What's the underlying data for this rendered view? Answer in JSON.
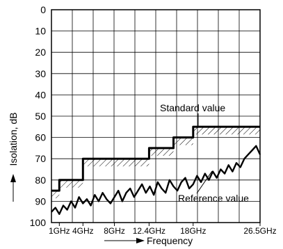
{
  "chart_data": {
    "type": "line",
    "xlabel": "Frequency",
    "ylabel": "Isolation, dB",
    "xlim": [
      0,
      26.5
    ],
    "ylim": [
      0,
      100
    ],
    "y_inverted": true,
    "grid": true,
    "x_ticks": [
      {
        "value": 1,
        "label": "1GHz"
      },
      {
        "value": 4,
        "label": "4GHz"
      },
      {
        "value": 8,
        "label": "8GHz"
      },
      {
        "value": 12.4,
        "label": "12.4GHz"
      },
      {
        "value": 18,
        "label": "18GHz"
      },
      {
        "value": 26.5,
        "label": "26.5GHz"
      }
    ],
    "y_ticks": [
      0,
      10,
      20,
      30,
      40,
      50,
      60,
      70,
      80,
      90,
      100
    ],
    "series": [
      {
        "name": "Standard value",
        "style": "step",
        "x": [
          0,
          1,
          1,
          4,
          4,
          12.4,
          12.4,
          15.5,
          15.5,
          18,
          18,
          26.5
        ],
        "y": [
          85,
          85,
          80,
          80,
          70,
          70,
          65,
          65,
          60,
          60,
          55,
          55
        ]
      },
      {
        "name": "Reference value",
        "style": "line",
        "x": [
          0,
          0.5,
          1,
          1.5,
          2,
          2.5,
          3,
          3.5,
          4,
          4.5,
          5,
          5.5,
          6,
          6.5,
          7,
          7.5,
          8,
          8.5,
          9,
          9.5,
          10,
          10.5,
          11,
          11.5,
          12,
          12.5,
          13,
          13.5,
          14,
          14.5,
          15,
          15.5,
          16,
          16.5,
          17,
          17.5,
          18,
          18.5,
          19,
          19.5,
          20,
          20.5,
          21,
          21.5,
          22,
          22.5,
          23,
          23.5,
          24,
          24.5,
          25,
          25.5,
          26,
          26.5
        ],
        "y": [
          95,
          93,
          96,
          92,
          94,
          90,
          93,
          88,
          91,
          89,
          92,
          87,
          90,
          86,
          89,
          91,
          88,
          85,
          90,
          86,
          84,
          88,
          85,
          82,
          86,
          83,
          87,
          81,
          84,
          86,
          80,
          83,
          85,
          81,
          79,
          84,
          82,
          78,
          81,
          77,
          80,
          76,
          79,
          75,
          77,
          73,
          76,
          72,
          74,
          70,
          68,
          66,
          64,
          68
        ]
      }
    ],
    "annotations": [
      {
        "text": "Standard value"
      },
      {
        "text": "Reference value"
      }
    ]
  }
}
